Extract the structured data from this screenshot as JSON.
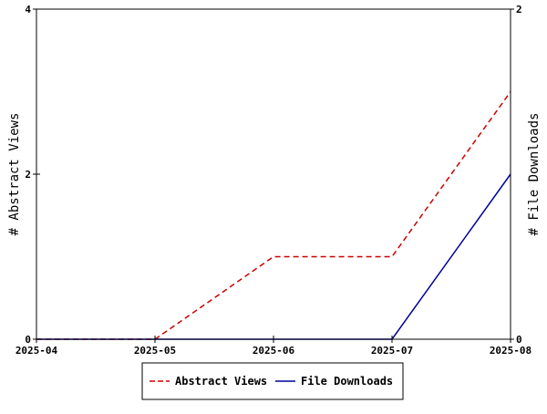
{
  "chart_data": {
    "type": "line",
    "x": [
      "2025-04",
      "2025-05",
      "2025-06",
      "2025-07",
      "2025-08"
    ],
    "series": [
      {
        "name": "Abstract Views",
        "axis": "left",
        "values": [
          0,
          0,
          1,
          1,
          3
        ],
        "color": "#cc0000",
        "style": "dashed"
      },
      {
        "name": "File Downloads",
        "axis": "right",
        "values": [
          0,
          0,
          0,
          0,
          1
        ],
        "color": "#000099",
        "style": "solid"
      }
    ],
    "ylabel": "# Abstract Views",
    "y2label": "# File Downloads",
    "ylim": [
      0,
      4
    ],
    "y2lim": [
      0,
      2
    ],
    "yticks": [
      "0",
      "2",
      "4"
    ],
    "y2ticks": [
      "0",
      "2"
    ],
    "grid": false,
    "legend_position": "bottom"
  }
}
